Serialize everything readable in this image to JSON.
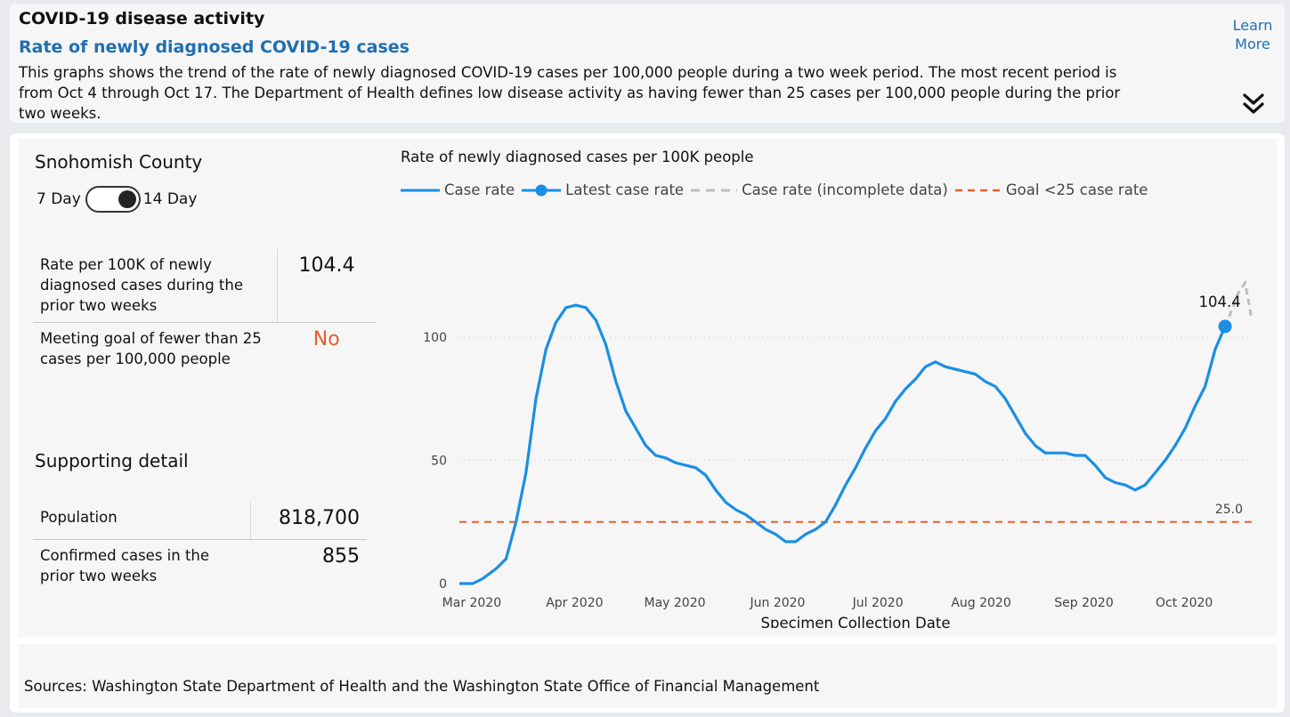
{
  "header": {
    "title": "COVID-19 disease activity",
    "subtitle": "Rate of newly diagnosed COVID-19 cases",
    "description": "This graphs shows the trend of the rate of newly diagnosed COVID-19 cases per 100,000 people during a two week period. The most recent period is from Oct 4 through Oct 17. The Department of Health defines low disease activity as having fewer than 25 cases per 100,000 people during the prior two weeks.",
    "learn_more_line1": "Learn",
    "learn_more_line2": "More",
    "expand_icon": "double-chevron-down-icon"
  },
  "left": {
    "county": "Snohomish County",
    "toggle_left": "7 Day",
    "toggle_right": "14 Day",
    "toggle_selected": "14 Day",
    "rate_label": "Rate per 100K of newly diagnosed cases during the prior two weeks",
    "rate_value": "104.4",
    "goal_label": "Meeting goal of fewer than 25 cases per 100,000 people",
    "goal_value": "No",
    "supporting_title": "Supporting detail",
    "population_label": "Population",
    "population_value": "818,700",
    "confirmed_label": "Confirmed cases in the prior two weeks",
    "confirmed_value": "855"
  },
  "footer": {
    "sources": "Sources: Washington State Department of Health and the Washington State Office of Financial Management"
  },
  "colors": {
    "case_rate": "#1a8fe3",
    "incomplete": "#bdbdbd",
    "goal": "#e8602c",
    "accent_blue": "#1f6fb2"
  },
  "chart_data": {
    "type": "line",
    "title": "Rate of newly diagnosed cases per 100K people",
    "xlabel": "Specimen Collection Date",
    "ylabel": "",
    "x_ticks": [
      "Mar 2020",
      "Apr 2020",
      "May 2020",
      "Jun 2020",
      "Jul 2020",
      "Aug 2020",
      "Sep 2020",
      "Oct 2020"
    ],
    "y_ticks": [
      0,
      50,
      100
    ],
    "ylim": [
      0,
      130
    ],
    "xlim": [
      "2020-03-01",
      "2020-10-25"
    ],
    "legend": [
      "Case rate",
      "Latest case rate",
      "Case rate (incomplete data)",
      "Goal <25 case rate"
    ],
    "legend_position": "top",
    "goal_value": 25,
    "goal_label": "25.0",
    "latest": {
      "date": "2020-10-17",
      "value": 104.4,
      "label": "104.4"
    },
    "series": [
      {
        "name": "Case rate",
        "points": [
          [
            "2020-03-01",
            0
          ],
          [
            "2020-03-05",
            0
          ],
          [
            "2020-03-08",
            2
          ],
          [
            "2020-03-12",
            6
          ],
          [
            "2020-03-15",
            10
          ],
          [
            "2020-03-18",
            25
          ],
          [
            "2020-03-21",
            45
          ],
          [
            "2020-03-24",
            75
          ],
          [
            "2020-03-27",
            95
          ],
          [
            "2020-03-30",
            106
          ],
          [
            "2020-04-02",
            112
          ],
          [
            "2020-04-05",
            113
          ],
          [
            "2020-04-08",
            112
          ],
          [
            "2020-04-11",
            107
          ],
          [
            "2020-04-14",
            97
          ],
          [
            "2020-04-17",
            82
          ],
          [
            "2020-04-20",
            70
          ],
          [
            "2020-04-23",
            63
          ],
          [
            "2020-04-26",
            56
          ],
          [
            "2020-04-29",
            52
          ],
          [
            "2020-05-02",
            51
          ],
          [
            "2020-05-05",
            49
          ],
          [
            "2020-05-08",
            48
          ],
          [
            "2020-05-11",
            47
          ],
          [
            "2020-05-14",
            44
          ],
          [
            "2020-05-17",
            38
          ],
          [
            "2020-05-20",
            33
          ],
          [
            "2020-05-23",
            30
          ],
          [
            "2020-05-26",
            28
          ],
          [
            "2020-05-29",
            25
          ],
          [
            "2020-06-01",
            22
          ],
          [
            "2020-06-04",
            20
          ],
          [
            "2020-06-07",
            17
          ],
          [
            "2020-06-10",
            17
          ],
          [
            "2020-06-13",
            20
          ],
          [
            "2020-06-16",
            22
          ],
          [
            "2020-06-19",
            25
          ],
          [
            "2020-06-22",
            32
          ],
          [
            "2020-06-25",
            40
          ],
          [
            "2020-06-28",
            47
          ],
          [
            "2020-07-01",
            55
          ],
          [
            "2020-07-04",
            62
          ],
          [
            "2020-07-07",
            67
          ],
          [
            "2020-07-10",
            74
          ],
          [
            "2020-07-13",
            79
          ],
          [
            "2020-07-16",
            83
          ],
          [
            "2020-07-19",
            88
          ],
          [
            "2020-07-22",
            90
          ],
          [
            "2020-07-25",
            88
          ],
          [
            "2020-07-28",
            87
          ],
          [
            "2020-07-31",
            86
          ],
          [
            "2020-08-03",
            85
          ],
          [
            "2020-08-06",
            82
          ],
          [
            "2020-08-09",
            80
          ],
          [
            "2020-08-12",
            75
          ],
          [
            "2020-08-15",
            68
          ],
          [
            "2020-08-18",
            61
          ],
          [
            "2020-08-21",
            56
          ],
          [
            "2020-08-24",
            53
          ],
          [
            "2020-08-27",
            53
          ],
          [
            "2020-08-30",
            53
          ],
          [
            "2020-09-02",
            52
          ],
          [
            "2020-09-05",
            52
          ],
          [
            "2020-09-08",
            48
          ],
          [
            "2020-09-11",
            43
          ],
          [
            "2020-09-14",
            41
          ],
          [
            "2020-09-17",
            40
          ],
          [
            "2020-09-20",
            38
          ],
          [
            "2020-09-23",
            40
          ],
          [
            "2020-09-26",
            45
          ],
          [
            "2020-09-29",
            50
          ],
          [
            "2020-10-02",
            56
          ],
          [
            "2020-10-05",
            63
          ],
          [
            "2020-10-08",
            72
          ],
          [
            "2020-10-11",
            80
          ],
          [
            "2020-10-14",
            95
          ],
          [
            "2020-10-17",
            104.4
          ]
        ]
      },
      {
        "name": "Case rate (incomplete data)",
        "points": [
          [
            "2020-10-17",
            104.4
          ],
          [
            "2020-10-19",
            111
          ],
          [
            "2020-10-21",
            118
          ],
          [
            "2020-10-23",
            122
          ],
          [
            "2020-10-24",
            115
          ],
          [
            "2020-10-25",
            107
          ]
        ]
      }
    ]
  }
}
